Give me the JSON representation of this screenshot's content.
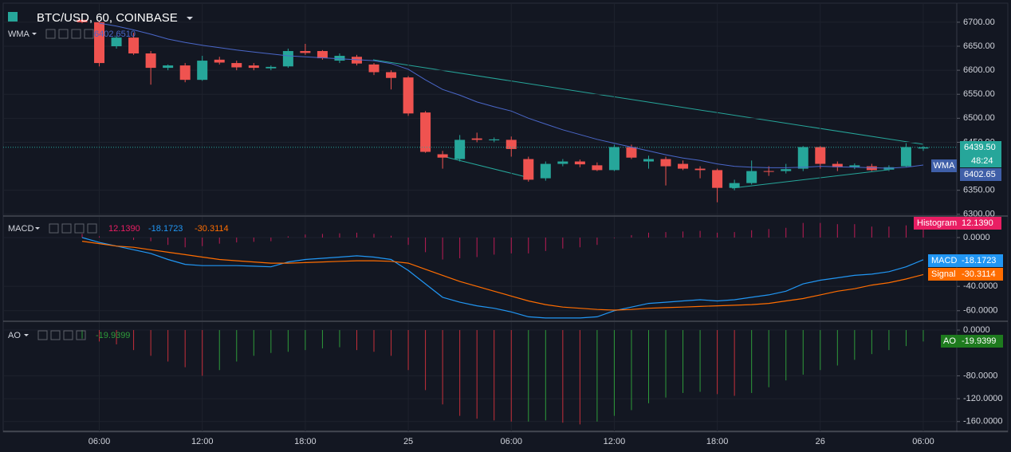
{
  "chart_data": [
    {
      "type": "candlestick",
      "title": "BTC/USD, 60, COINBASE",
      "categories": [
        null,
        "06:00",
        null,
        null,
        null,
        null,
        null,
        "12:00",
        null,
        null,
        null,
        null,
        null,
        "18:00",
        null,
        null,
        null,
        null,
        null,
        "25",
        null,
        null,
        null,
        null,
        null,
        "06:00",
        null,
        null,
        null,
        null,
        null,
        "12:00",
        null,
        null,
        null,
        null,
        null,
        "18:00",
        null,
        null,
        null,
        null,
        null,
        "26",
        null,
        null,
        null,
        null,
        null,
        "06:00"
      ],
      "open": [
        6705,
        6700,
        6650,
        6668,
        6635,
        6605,
        6610,
        6580,
        6622,
        6615,
        6610,
        6604,
        6608,
        6640,
        6640,
        6620,
        6628,
        6612,
        6596,
        6585,
        6512,
        6425,
        6415,
        6458,
        6454,
        6455,
        6415,
        6375,
        6405,
        6410,
        6402,
        6392,
        6440,
        6410,
        6415,
        6405,
        6395,
        6392,
        6355,
        6365,
        6390,
        6390,
        6395,
        6440,
        6405,
        6398,
        6400,
        6393,
        6400,
        6437
      ],
      "high": [
        6710,
        6702,
        6672,
        6678,
        6640,
        6612,
        6615,
        6630,
        6628,
        6620,
        6615,
        6610,
        6645,
        6655,
        6642,
        6635,
        6632,
        6615,
        6600,
        6588,
        6515,
        6432,
        6465,
        6470,
        6460,
        6462,
        6420,
        6410,
        6415,
        6414,
        6408,
        6445,
        6445,
        6422,
        6420,
        6412,
        6400,
        6395,
        6372,
        6412,
        6400,
        6405,
        6442,
        6442,
        6410,
        6406,
        6405,
        6402,
        6448,
        6442
      ],
      "low": [
        6698,
        6608,
        6645,
        6632,
        6570,
        6600,
        6575,
        6578,
        6612,
        6600,
        6600,
        6600,
        6605,
        6632,
        6622,
        6615,
        6610,
        6590,
        6560,
        6505,
        6428,
        6395,
        6410,
        6450,
        6450,
        6420,
        6368,
        6370,
        6400,
        6398,
        6390,
        6390,
        6415,
        6395,
        6360,
        6392,
        6375,
        6325,
        6350,
        6362,
        6380,
        6385,
        6390,
        6395,
        6390,
        6394,
        6390,
        6390,
        6398,
        6432
      ],
      "close": [
        6700,
        6615,
        6668,
        6635,
        6605,
        6610,
        6580,
        6620,
        6616,
        6606,
        6605,
        6607,
        6640,
        6636,
        6625,
        6630,
        6614,
        6596,
        6584,
        6510,
        6430,
        6418,
        6455,
        6455,
        6456,
        6436,
        6372,
        6405,
        6410,
        6404,
        6392,
        6440,
        6418,
        6415,
        6400,
        6395,
        6392,
        6355,
        6365,
        6390,
        6389,
        6394,
        6440,
        6405,
        6398,
        6402,
        6392,
        6398,
        6440,
        6439.5
      ],
      "up_color": "#26a69a",
      "down_color": "#ef5350",
      "last_label": "6439.50",
      "countdown": "48:24",
      "overlays": [
        {
          "name": "WMA",
          "color": "#4a67c9",
          "legend_label": "6402.6510",
          "axis_label": "6402.65",
          "values": [
            null,
            6698,
            6692,
            6684,
            6675,
            6665,
            6658,
            6652,
            6647,
            6642,
            6638,
            6634,
            6630,
            6628,
            6626,
            6624,
            6622,
            6620,
            6614,
            6602,
            6580,
            6560,
            6548,
            6534,
            6524,
            6515,
            6500,
            6488,
            6476,
            6466,
            6456,
            6448,
            6440,
            6432,
            6424,
            6417,
            6412,
            6405,
            6400,
            6398,
            6397,
            6397,
            6398,
            6400,
            6399,
            6398,
            6397,
            6396,
            6398,
            6402.65
          ]
        }
      ],
      "ylim": [
        6298,
        6738
      ],
      "yticks": [
        {
          "value": 6300,
          "label": "6300.00"
        },
        {
          "value": 6350,
          "label": "6350.00"
        },
        {
          "value": 6450,
          "label": "6450.00"
        },
        {
          "value": 6500,
          "label": "6500.00"
        },
        {
          "value": 6550,
          "label": "6550.00"
        },
        {
          "value": 6600,
          "label": "6600.00"
        },
        {
          "value": 6650,
          "label": "6650.00"
        },
        {
          "value": 6700,
          "label": "6700.00"
        }
      ]
    },
    {
      "type": "macd",
      "name": "MACD",
      "histogram": {
        "name": "Histogram",
        "color": "#e91e63",
        "last_label": "12.1390",
        "values": [
          3,
          1,
          0,
          -2,
          -3,
          -6,
          -8,
          -7,
          -5,
          -4,
          -3.5,
          -3,
          1,
          2.5,
          3,
          3.5,
          4,
          3,
          1.5,
          -6,
          -12,
          -18,
          -17,
          -16,
          -14,
          -13,
          -13,
          -11,
          -9,
          -8,
          -6,
          -0.5,
          2,
          4,
          4.5,
          5,
          5.5,
          4,
          4.5,
          6,
          7,
          8,
          12,
          12,
          11,
          11,
          9,
          9,
          10,
          12.139
        ]
      },
      "series": [
        {
          "name": "MACD",
          "color": "#2196f3",
          "last_label": "-18.1723",
          "values": [
            0,
            -4,
            -7,
            -10,
            -13,
            -18,
            -22,
            -23,
            -23,
            -23,
            -23.5,
            -24,
            -20,
            -18,
            -17,
            -16,
            -15,
            -16,
            -18,
            -27,
            -38,
            -49,
            -53,
            -56,
            -58,
            -61,
            -65,
            -66,
            -66,
            -66,
            -65,
            -60,
            -57,
            -54,
            -53,
            -52,
            -51,
            -52,
            -51,
            -49,
            -47,
            -44,
            -38,
            -35,
            -33,
            -31,
            -30,
            -28,
            -24,
            -18.1723
          ]
        },
        {
          "name": "Signal",
          "color": "#ff6d00",
          "last_label": "-30.3114",
          "values": [
            -3,
            -5,
            -7,
            -8,
            -10,
            -12,
            -14,
            -16,
            -18,
            -19,
            -20,
            -21,
            -21,
            -20.5,
            -20,
            -19.5,
            -19,
            -19,
            -19.5,
            -21,
            -26,
            -31,
            -36,
            -40,
            -44,
            -48,
            -52,
            -55,
            -57,
            -58,
            -59,
            -59.5,
            -59,
            -58,
            -57.5,
            -57,
            -56.5,
            -56,
            -55.5,
            -55,
            -54,
            -52,
            -50,
            -47,
            -44,
            -42,
            -39,
            -37,
            -34,
            -30.3114
          ]
        }
      ],
      "ylim": [
        -68,
        17
      ],
      "yticks": [
        {
          "value": 0,
          "label": "0.0000"
        },
        {
          "value": -40,
          "label": "-40.0000"
        },
        {
          "value": -60,
          "label": "-60.0000"
        }
      ]
    },
    {
      "type": "ao",
      "name": "AO",
      "up_color": "#2e9b3a",
      "down_color": "#c62f3a",
      "badge_color": "#1e7b1e",
      "last_label": "-19.9399",
      "values": [
        -15,
        -20,
        -25,
        -35,
        -45,
        -55,
        -65,
        -80,
        -70,
        -55,
        -45,
        -40,
        -38,
        -35,
        -32,
        -30,
        -35,
        -38,
        -45,
        -70,
        -105,
        -130,
        -150,
        -155,
        -158,
        -160,
        -160,
        -158,
        -162,
        -165,
        -160,
        -150,
        -140,
        -128,
        -118,
        -110,
        -108,
        -112,
        -115,
        -110,
        -100,
        -88,
        -78,
        -70,
        -62,
        -52,
        -42,
        -35,
        -28,
        -19.9399
      ],
      "ylim": [
        -177,
        14
      ],
      "yticks": [
        {
          "value": 0,
          "label": "0.0000"
        },
        {
          "value": -80,
          "label": "-80.0000"
        },
        {
          "value": -120,
          "label": "-120.0000"
        },
        {
          "value": -160,
          "label": "-160.0000"
        }
      ]
    }
  ]
}
